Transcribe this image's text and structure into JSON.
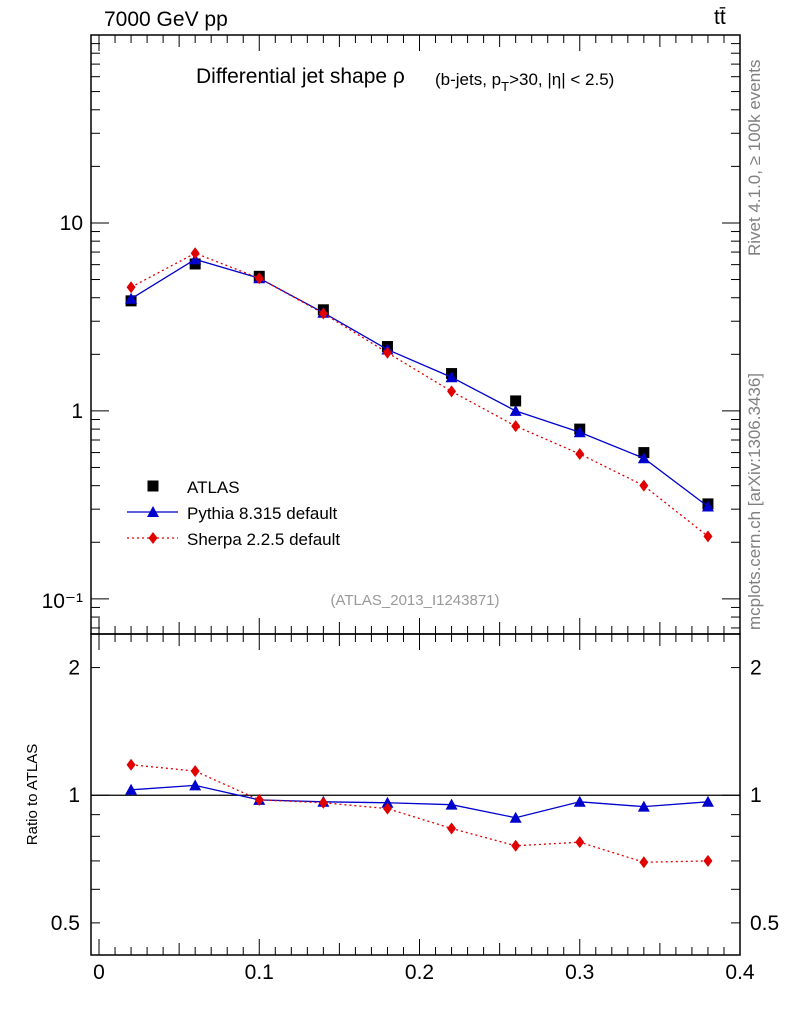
{
  "header": {
    "left": "7000 GeV pp",
    "right": "tt̄"
  },
  "side_texts": {
    "rivet": "Rivet 4.1.0, ≥ 100k events",
    "mcplots": "mcplots.cern.ch [arXiv:1306.3436]"
  },
  "chart_data": [
    {
      "type": "line",
      "panel": "main",
      "title_main": "Differential jet shape ρ",
      "title_cut": "(b-jets, p_T>30, |η| < 2.5)",
      "watermark": "(ATLAS_2013_I1243871)",
      "yscale": "log",
      "xlim": [
        -0.005,
        0.4
      ],
      "ylim": [
        0.065,
        100
      ],
      "ytick_labels": {
        "0.1": "10⁻¹",
        "1": "1",
        "10": "10"
      },
      "x": [
        0.02,
        0.06,
        0.1,
        0.14,
        0.18,
        0.22,
        0.26,
        0.3,
        0.34,
        0.38
      ],
      "series": [
        {
          "name": "ATLAS",
          "color": "#000000",
          "marker": "square",
          "line": "none",
          "values": [
            3.85,
            6.05,
            5.2,
            3.45,
            2.2,
            1.58,
            1.13,
            0.8,
            0.6,
            0.32
          ]
        },
        {
          "name": "Pythia 8.315 default",
          "color": "#0000cc",
          "marker": "triangle",
          "line": "solid",
          "values": [
            3.95,
            6.4,
            5.08,
            3.33,
            2.12,
            1.51,
            1.0,
            0.77,
            0.56,
            0.31
          ]
        },
        {
          "name": "Sherpa 2.2.5 default",
          "color": "#e00000",
          "marker": "diamond",
          "line": "dotted",
          "values": [
            4.55,
            6.9,
            5.08,
            3.3,
            2.04,
            1.27,
            0.83,
            0.59,
            0.4,
            0.215
          ]
        }
      ],
      "legend_position": "lower-left"
    },
    {
      "type": "line",
      "panel": "ratio",
      "ylabel": "Ratio to ATLAS",
      "yscale": "log",
      "xlim": [
        -0.005,
        0.4
      ],
      "ylim": [
        0.42,
        2.4
      ],
      "reference": 1,
      "xtick_labels": [
        "0",
        "0.1",
        "0.2",
        "0.3",
        "0.4"
      ],
      "ytick_labels": [
        "0.5",
        "1",
        "2"
      ],
      "x": [
        0.02,
        0.06,
        0.1,
        0.14,
        0.18,
        0.22,
        0.26,
        0.3,
        0.34,
        0.38
      ],
      "series": [
        {
          "name": "Pythia 8.315 default",
          "color": "#0000cc",
          "marker": "triangle",
          "line": "solid",
          "values": [
            1.03,
            1.055,
            0.975,
            0.965,
            0.96,
            0.95,
            0.885,
            0.965,
            0.94,
            0.965
          ]
        },
        {
          "name": "Sherpa 2.2.5 default",
          "color": "#e00000",
          "marker": "diamond",
          "line": "dotted",
          "values": [
            1.18,
            1.14,
            0.975,
            0.96,
            0.93,
            0.835,
            0.76,
            0.775,
            0.695,
            0.7
          ]
        }
      ]
    }
  ]
}
